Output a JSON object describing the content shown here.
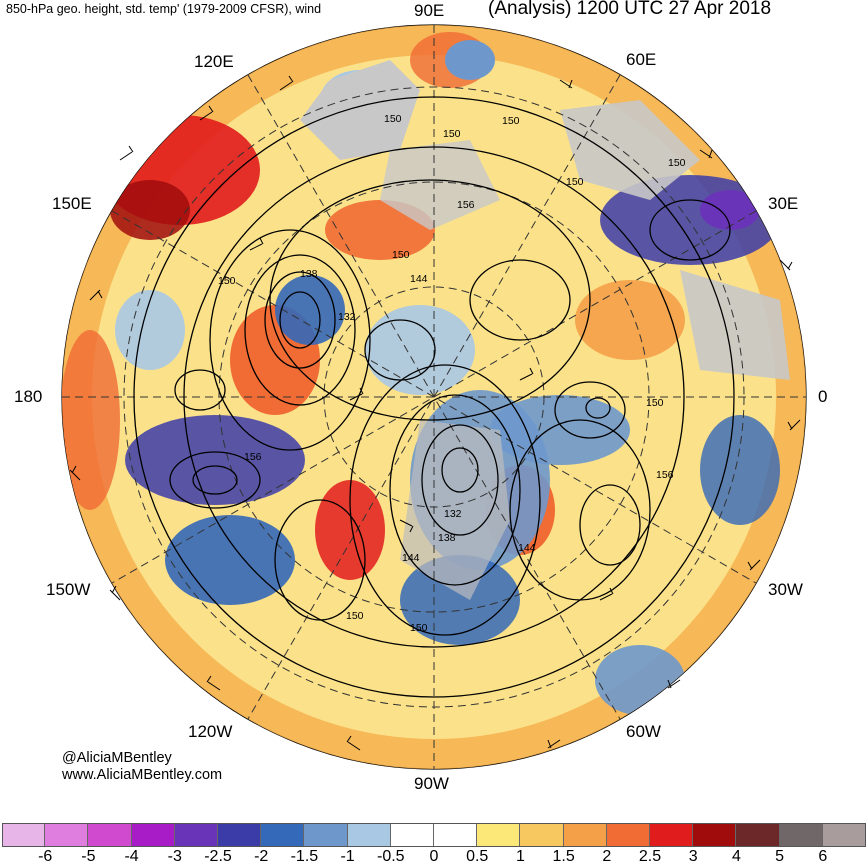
{
  "header": {
    "left_title": "850-hPa geo. height, std. temp' (1979-2009 CFSR), wind",
    "right_title": "(Analysis) 1200 UTC 27 Apr 2018"
  },
  "longitude_labels": {
    "lon_90e": "90E",
    "lon_60e": "60E",
    "lon_120e": "120E",
    "lon_30e": "30E",
    "lon_150e": "150E",
    "lon_180": "180",
    "lon_0": "0",
    "lon_150w": "150W",
    "lon_30w": "30W",
    "lon_120w": "120W",
    "lon_60w": "60W",
    "lon_90w": "90W"
  },
  "contour_labels": {
    "c1": "150",
    "c2": "150",
    "c3": "150",
    "c4": "150",
    "c5": "150",
    "c6": "156",
    "c7": "150",
    "c8": "138",
    "c9": "144",
    "c10": "132",
    "c11": "150",
    "c12": "156",
    "c13": "150",
    "c14": "156",
    "c15": "132",
    "c16": "138",
    "c17": "144",
    "c18": "144",
    "c19": "150",
    "c20": "150"
  },
  "credit": {
    "handle": "@AliciaMBentley",
    "site": "www.AliciaMBentley.com"
  },
  "colorbar": {
    "colors": [
      "#e8b5e8",
      "#e07ee0",
      "#d04ad0",
      "#a81cc8",
      "#6a34b8",
      "#3c3ca8",
      "#3468b8",
      "#6e98cc",
      "#a8c8e4",
      "#ffffff",
      "#ffffff",
      "#fce878",
      "#f8c860",
      "#f4a048",
      "#f06c34",
      "#e01c1c",
      "#a00c0c",
      "#6c2828",
      "#706868",
      "#a89c9c"
    ],
    "ticks": [
      "-6",
      "-5",
      "-4",
      "-3",
      "-2.5",
      "-2",
      "-1.5",
      "-1",
      "-0.5",
      "0",
      "0.5",
      "1",
      "1.5",
      "2",
      "2.5",
      "3",
      "4",
      "5",
      "6"
    ]
  }
}
